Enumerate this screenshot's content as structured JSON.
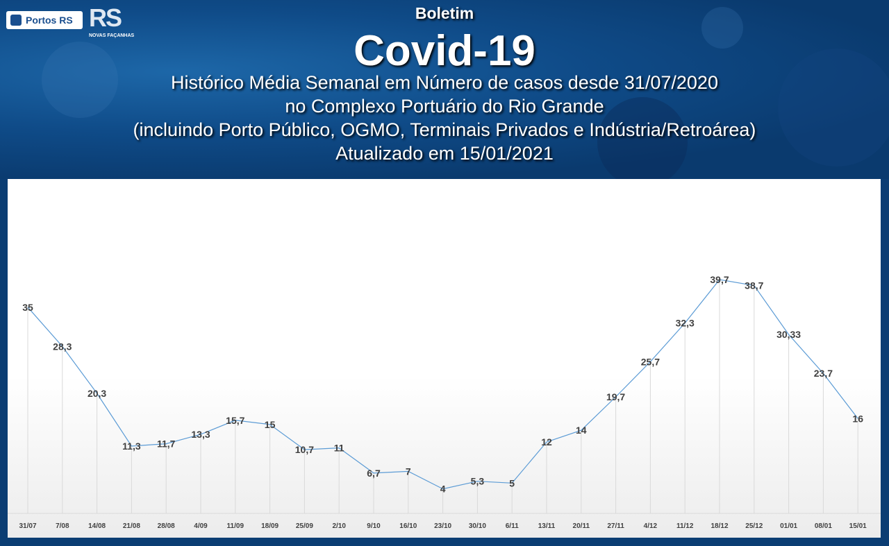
{
  "header": {
    "logo_portos": "Portos RS",
    "logo_gov": "RS",
    "logo_gov_tagline": "NOVAS FAÇANHAS",
    "title_small": "Boletim",
    "title_big": "Covid-19",
    "subtitle_1": "Histórico Média Semanal em Número de casos desde 31/07/2020",
    "subtitle_2": "no Complexo Portuário do Rio Grande",
    "subtitle_3": "(incluindo Porto Público, OGMO, Terminais Privados e Indústria/Retroárea)",
    "subtitle_4": "Atualizado em 15/01/2021"
  },
  "colors": {
    "banner": "#0a3a6e",
    "line": "#5b9bd5",
    "label": "#404040"
  },
  "chart_data": {
    "type": "line",
    "categories": [
      "31/07",
      "7/08",
      "14/08",
      "21/08",
      "28/08",
      "4/09",
      "11/09",
      "18/09",
      "25/09",
      "2/10",
      "9/10",
      "16/10",
      "23/10",
      "30/10",
      "6/11",
      "13/11",
      "20/11",
      "27/11",
      "4/12",
      "11/12",
      "18/12",
      "25/12",
      "01/01",
      "08/01",
      "15/01"
    ],
    "values": [
      35,
      28.3,
      20.3,
      11.3,
      11.7,
      13.3,
      15.7,
      15,
      10.7,
      11,
      6.7,
      7,
      4,
      5.3,
      5,
      12,
      14,
      19.7,
      25.7,
      32.3,
      39.7,
      38.7,
      30.33,
      23.7,
      16
    ],
    "value_labels": [
      "35",
      "28,3",
      "20,3",
      "11,3",
      "11,7",
      "13,3",
      "15,7",
      "15",
      "10,7",
      "11",
      "6,7",
      "7",
      "4",
      "5,3",
      "5",
      "12",
      "14",
      "19,7",
      "25,7",
      "32,3",
      "39,7",
      "38,7",
      "30,33",
      "23,7",
      "16"
    ],
    "ylim": [
      0,
      45
    ],
    "grid": "vertical drop lines",
    "title": "",
    "xlabel": "",
    "ylabel": ""
  }
}
